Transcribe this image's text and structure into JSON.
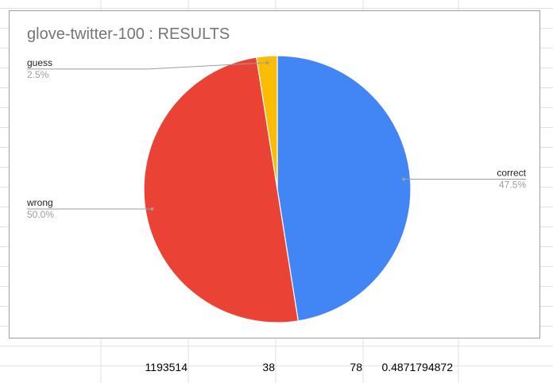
{
  "colors": {
    "grid_line": "#e2e2e2",
    "chart_border": "#9e9e9e",
    "title": "#757575",
    "label_name": "#222222",
    "label_pct": "#9e9e9e",
    "leader": "#9e9e9e"
  },
  "chart_data": {
    "type": "pie",
    "title": "glove-twitter-100 : RESULTS",
    "slices": [
      {
        "label": "correct",
        "percent": 47.5,
        "display": "47.5%",
        "color": "#4285f4",
        "label_side": "right"
      },
      {
        "label": "wrong",
        "percent": 50.0,
        "display": "50.0%",
        "color": "#ea4335",
        "label_side": "left"
      },
      {
        "label": "guess",
        "percent": 2.5,
        "display": "2.5%",
        "color": "#fbbc04",
        "label_side": "left"
      }
    ],
    "legend": "labeled slices"
  },
  "sheet_row": {
    "cells": [
      "1193514",
      "38",
      "78",
      "0.4871794872"
    ]
  }
}
